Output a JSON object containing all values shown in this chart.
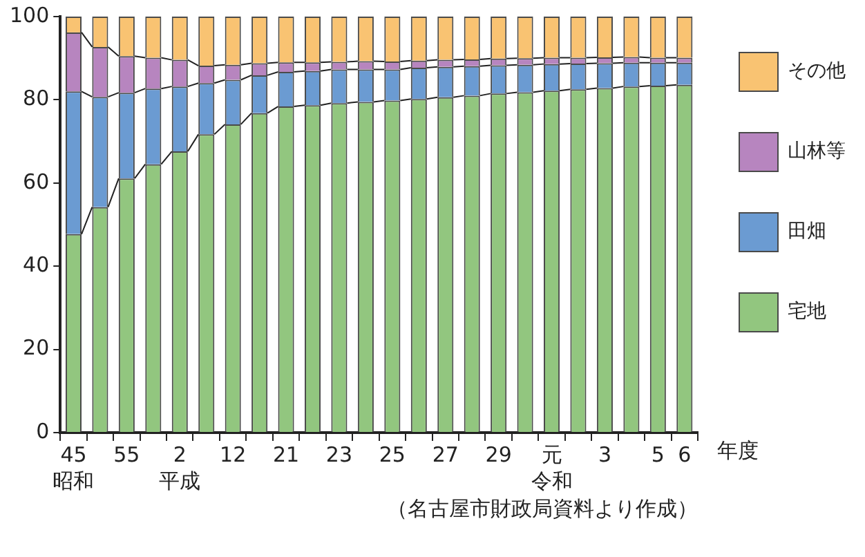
{
  "chart_data": {
    "type": "bar",
    "stacked": true,
    "xlabel": "年度",
    "categories": [
      "45",
      null,
      "55",
      null,
      "2",
      null,
      "12",
      null,
      "21",
      null,
      "23",
      null,
      "25",
      null,
      "27",
      null,
      "29",
      null,
      "元",
      null,
      "3",
      null,
      "5",
      "6"
    ],
    "series": [
      {
        "name": "宅地",
        "color": "#92c67f",
        "values": [
          47.7,
          54.2,
          61.1,
          64.5,
          67.6,
          71.7,
          74.1,
          76.8,
          78.4,
          78.7,
          79.2,
          79.5,
          79.8,
          80.2,
          80.6,
          81.0,
          81.5,
          81.8,
          82.2,
          82.5,
          82.8,
          83.2,
          83.4,
          83.6
        ]
      },
      {
        "name": "田畑",
        "color": "#6b9bd2",
        "values": [
          34.3,
          26.5,
          20.6,
          18.2,
          15.6,
          12.3,
          10.7,
          9.1,
          8.3,
          8.2,
          8.1,
          7.8,
          7.5,
          7.5,
          7.3,
          7.1,
          6.8,
          6.6,
          6.4,
          6.2,
          6.0,
          5.7,
          5.5,
          5.3
        ]
      },
      {
        "name": "山林等",
        "color": "#b785bf",
        "values": [
          14.2,
          12.0,
          8.8,
          7.4,
          6.4,
          4.2,
          3.6,
          2.9,
          2.3,
          2.1,
          1.8,
          2.0,
          1.9,
          1.7,
          1.7,
          1.6,
          1.6,
          1.6,
          1.5,
          1.4,
          1.4,
          1.4,
          1.2,
          1.2
        ]
      },
      {
        "name": "その他",
        "color": "#f9c372",
        "values": [
          3.8,
          7.3,
          9.5,
          9.9,
          10.4,
          11.8,
          11.6,
          11.2,
          11.0,
          11.0,
          10.9,
          10.7,
          10.8,
          10.6,
          10.4,
          10.3,
          10.1,
          10.0,
          9.9,
          9.9,
          9.8,
          9.7,
          9.9,
          9.9
        ]
      }
    ],
    "ylim": [
      0,
      100
    ],
    "yticks": [
      0,
      20,
      40,
      60,
      80,
      100
    ],
    "grid": false,
    "legend": "right",
    "annotations": [
      "昭和",
      "平成",
      "令和",
      "（名古屋市財政局資料より作成）"
    ]
  }
}
